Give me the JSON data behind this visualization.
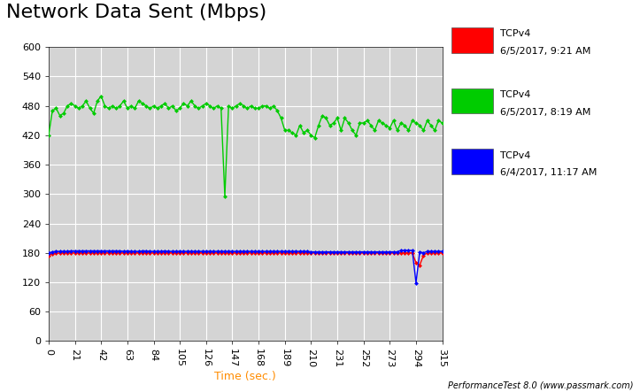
{
  "title": "Network Data Sent (Mbps)",
  "xlabel": "Time (sec.)",
  "xlim": [
    0,
    315
  ],
  "ylim": [
    0,
    600
  ],
  "xticks": [
    0,
    21,
    42,
    63,
    84,
    105,
    126,
    147,
    168,
    189,
    210,
    231,
    252,
    273,
    294,
    315
  ],
  "yticks": [
    0,
    60,
    120,
    180,
    240,
    300,
    360,
    420,
    480,
    540,
    600
  ],
  "fig_bg_color": "#FFFFFF",
  "plot_bg_color": "#D4D4D4",
  "grid_color": "#FFFFFF",
  "legend_colors": [
    "#FF0000",
    "#00CC00",
    "#0000FF"
  ],
  "legend_labels": [
    "TCPv4",
    "TCPv4",
    "TCPv4"
  ],
  "legend_dates": [
    "6/5/2017, 9:21 AM",
    "6/5/2017, 8:19 AM",
    "6/4/2017, 11:17 AM"
  ],
  "footer": "PerformanceTest 8.0 (www.passmark.com)",
  "title_fontsize": 16,
  "tick_fontsize": 8,
  "xlabel_fontsize": 9,
  "xlabel_color": "#FF8C00",
  "red_x": [
    0,
    3,
    6,
    9,
    12,
    15,
    18,
    21,
    24,
    27,
    30,
    33,
    36,
    39,
    42,
    45,
    48,
    51,
    54,
    57,
    60,
    63,
    66,
    69,
    72,
    75,
    78,
    81,
    84,
    87,
    90,
    93,
    96,
    99,
    102,
    105,
    108,
    111,
    114,
    117,
    120,
    123,
    126,
    129,
    132,
    135,
    138,
    141,
    144,
    147,
    150,
    153,
    156,
    159,
    162,
    165,
    168,
    171,
    174,
    177,
    180,
    183,
    186,
    189,
    192,
    195,
    198,
    201,
    204,
    207,
    210,
    213,
    216,
    219,
    222,
    225,
    228,
    231,
    234,
    237,
    240,
    243,
    246,
    249,
    252,
    255,
    258,
    261,
    264,
    267,
    270,
    273,
    276,
    279,
    282,
    285,
    288,
    291,
    294,
    297,
    300,
    303,
    306,
    309,
    312,
    315
  ],
  "red_y": [
    175,
    178,
    179,
    180,
    180,
    180,
    180,
    180,
    180,
    180,
    180,
    180,
    180,
    180,
    180,
    180,
    180,
    180,
    180,
    180,
    180,
    180,
    180,
    180,
    180,
    180,
    180,
    180,
    180,
    180,
    180,
    180,
    180,
    180,
    180,
    180,
    180,
    180,
    180,
    180,
    180,
    180,
    180,
    180,
    180,
    180,
    180,
    180,
    180,
    180,
    180,
    180,
    180,
    180,
    180,
    180,
    180,
    180,
    180,
    180,
    180,
    180,
    180,
    180,
    180,
    180,
    180,
    180,
    180,
    180,
    180,
    180,
    180,
    180,
    180,
    180,
    180,
    180,
    180,
    180,
    180,
    180,
    180,
    180,
    180,
    180,
    180,
    180,
    180,
    180,
    180,
    180,
    180,
    180,
    180,
    180,
    180,
    180,
    160,
    155,
    175,
    180,
    180,
    180,
    180,
    180
  ],
  "blue_x": [
    0,
    3,
    6,
    9,
    12,
    15,
    18,
    21,
    24,
    27,
    30,
    33,
    36,
    39,
    42,
    45,
    48,
    51,
    54,
    57,
    60,
    63,
    66,
    69,
    72,
    75,
    78,
    81,
    84,
    87,
    90,
    93,
    96,
    99,
    102,
    105,
    108,
    111,
    114,
    117,
    120,
    123,
    126,
    129,
    132,
    135,
    138,
    141,
    144,
    147,
    150,
    153,
    156,
    159,
    162,
    165,
    168,
    171,
    174,
    177,
    180,
    183,
    186,
    189,
    192,
    195,
    198,
    201,
    204,
    207,
    210,
    213,
    216,
    219,
    222,
    225,
    228,
    231,
    234,
    237,
    240,
    243,
    246,
    249,
    252,
    255,
    258,
    261,
    264,
    267,
    270,
    273,
    276,
    279,
    282,
    285,
    288,
    291,
    294,
    297,
    300,
    303,
    306,
    309,
    312,
    315
  ],
  "blue_y": [
    180,
    182,
    183,
    183,
    183,
    183,
    184,
    184,
    184,
    184,
    184,
    184,
    184,
    184,
    184,
    184,
    184,
    184,
    184,
    184,
    183,
    184,
    183,
    183,
    183,
    184,
    184,
    183,
    183,
    183,
    183,
    184,
    183,
    183,
    183,
    183,
    183,
    183,
    183,
    183,
    183,
    183,
    183,
    183,
    183,
    183,
    183,
    183,
    183,
    183,
    183,
    183,
    183,
    183,
    183,
    183,
    183,
    183,
    183,
    183,
    183,
    183,
    183,
    183,
    183,
    183,
    183,
    183,
    183,
    183,
    182,
    182,
    182,
    182,
    182,
    182,
    182,
    182,
    182,
    182,
    182,
    182,
    182,
    182,
    182,
    182,
    182,
    182,
    182,
    182,
    182,
    182,
    182,
    182,
    185,
    185,
    185,
    185,
    119,
    182,
    180,
    183,
    183,
    183,
    183,
    183
  ],
  "green_x": [
    0,
    3,
    6,
    9,
    12,
    15,
    18,
    21,
    24,
    27,
    30,
    33,
    36,
    39,
    42,
    45,
    48,
    51,
    54,
    57,
    60,
    63,
    66,
    69,
    72,
    75,
    78,
    81,
    84,
    87,
    90,
    93,
    96,
    99,
    102,
    105,
    108,
    111,
    114,
    117,
    120,
    123,
    126,
    129,
    132,
    135,
    138,
    141,
    144,
    147,
    150,
    153,
    156,
    159,
    162,
    165,
    168,
    171,
    174,
    177,
    180,
    183,
    186,
    189,
    192,
    195,
    198,
    201,
    204,
    207,
    210,
    213,
    216,
    219,
    222,
    225,
    228,
    231,
    234,
    237,
    240,
    243,
    246,
    249,
    252,
    255,
    258,
    261,
    264,
    267,
    270,
    273,
    276,
    279,
    282,
    285,
    288,
    291,
    294,
    297,
    300,
    303,
    306,
    309,
    312,
    315
  ],
  "green_y": [
    420,
    470,
    475,
    460,
    465,
    480,
    485,
    480,
    475,
    480,
    490,
    475,
    465,
    490,
    500,
    480,
    475,
    480,
    475,
    480,
    490,
    475,
    480,
    475,
    490,
    485,
    480,
    475,
    480,
    475,
    480,
    485,
    475,
    480,
    470,
    475,
    485,
    480,
    490,
    480,
    475,
    480,
    485,
    480,
    475,
    480,
    475,
    295,
    480,
    475,
    480,
    485,
    480,
    475,
    480,
    475,
    475,
    480,
    480,
    475,
    480,
    470,
    455,
    430,
    430,
    425,
    420,
    440,
    425,
    430,
    420,
    415,
    440,
    460,
    455,
    440,
    445,
    455,
    430,
    455,
    445,
    430,
    420,
    445,
    445,
    450,
    440,
    430,
    450,
    445,
    440,
    435,
    450,
    430,
    445,
    440,
    430,
    450,
    445,
    440,
    430,
    450,
    440,
    430,
    450,
    445
  ]
}
